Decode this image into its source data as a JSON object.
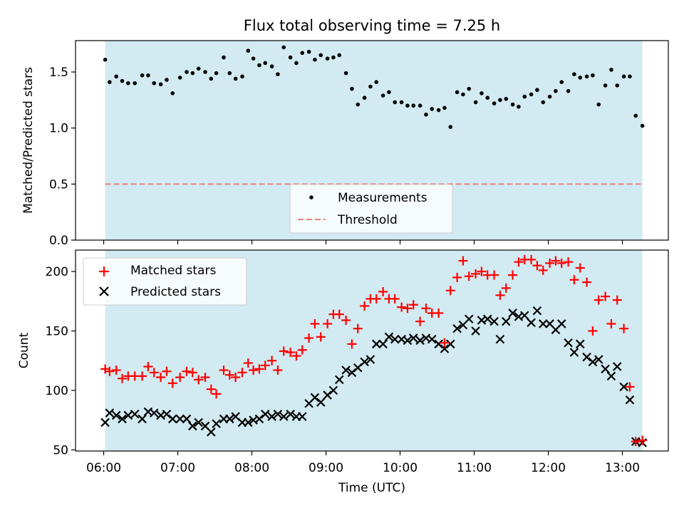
{
  "chart_data": [
    {
      "type": "scatter",
      "title": "Flux total observing time = 7.25 h",
      "xlabel": "",
      "ylabel": "Matched/Predicted stars",
      "ylim": [
        0.0,
        1.78
      ],
      "yticks": [
        0.0,
        0.5,
        1.0,
        1.5
      ],
      "ytick_labels": [
        "0.0",
        "0.5",
        "1.0",
        "1.5"
      ],
      "xlim": [
        5.62,
        13.62
      ],
      "observing_window": [
        6.02,
        13.27
      ],
      "window_color": "#d2eaf1",
      "threshold": 0.5,
      "legend_placement": "lower-center",
      "series": [
        {
          "name": "Measurements",
          "marker": "dot",
          "color": "#000000",
          "x": [
            6.02,
            6.08,
            6.17,
            6.25,
            6.33,
            6.42,
            6.52,
            6.6,
            6.68,
            6.77,
            6.85,
            6.93,
            7.03,
            7.12,
            7.2,
            7.28,
            7.37,
            7.45,
            7.52,
            7.62,
            7.7,
            7.78,
            7.87,
            7.95,
            8.02,
            8.1,
            8.18,
            8.27,
            8.35,
            8.43,
            8.52,
            8.6,
            8.68,
            8.77,
            8.85,
            8.93,
            9.02,
            9.1,
            9.18,
            9.27,
            9.35,
            9.43,
            9.52,
            9.6,
            9.68,
            9.77,
            9.85,
            9.93,
            10.02,
            10.1,
            10.18,
            10.27,
            10.35,
            10.43,
            10.52,
            10.6,
            10.68,
            10.77,
            10.85,
            10.93,
            11.02,
            11.1,
            11.18,
            11.27,
            11.35,
            11.43,
            11.52,
            11.6,
            11.68,
            11.77,
            11.85,
            11.93,
            12.02,
            12.1,
            12.18,
            12.27,
            12.35,
            12.43,
            12.52,
            12.6,
            12.68,
            12.77,
            12.85,
            12.93,
            13.02,
            13.1,
            13.18,
            13.27
          ],
          "y": [
            1.61,
            1.41,
            1.46,
            1.42,
            1.4,
            1.4,
            1.47,
            1.47,
            1.4,
            1.39,
            1.43,
            1.31,
            1.45,
            1.5,
            1.49,
            1.53,
            1.5,
            1.44,
            1.49,
            1.63,
            1.49,
            1.44,
            1.46,
            1.69,
            1.62,
            1.56,
            1.58,
            1.55,
            1.48,
            1.72,
            1.63,
            1.58,
            1.67,
            1.68,
            1.61,
            1.65,
            1.62,
            1.63,
            1.65,
            1.49,
            1.35,
            1.21,
            1.27,
            1.37,
            1.41,
            1.29,
            1.32,
            1.23,
            1.23,
            1.2,
            1.2,
            1.2,
            1.12,
            1.17,
            1.16,
            1.18,
            1.01,
            1.32,
            1.3,
            1.35,
            1.23,
            1.31,
            1.27,
            1.22,
            1.25,
            1.26,
            1.21,
            1.19,
            1.28,
            1.3,
            1.34,
            1.23,
            1.28,
            1.33,
            1.41,
            1.33,
            1.48,
            1.45,
            1.46,
            1.47,
            1.21,
            1.38,
            1.52,
            1.38,
            1.46,
            1.46,
            1.11,
            1.02
          ]
        },
        {
          "name": "Threshold",
          "marker": "dashed-line",
          "color": "#f08080"
        }
      ]
    },
    {
      "type": "scatter",
      "title": "",
      "xlabel": "Time (UTC)",
      "ylabel": "Count",
      "ylim": [
        49,
        218
      ],
      "yticks": [
        50,
        100,
        150,
        200
      ],
      "ytick_labels": [
        "50",
        "100",
        "150",
        "200"
      ],
      "xlim": [
        5.62,
        13.62
      ],
      "xticks": [
        6,
        7,
        8,
        9,
        10,
        11,
        12,
        13
      ],
      "xtick_labels": [
        "06:00",
        "07:00",
        "08:00",
        "09:00",
        "10:00",
        "11:00",
        "12:00",
        "13:00"
      ],
      "observing_window": [
        6.02,
        13.27
      ],
      "window_color": "#d2eaf1",
      "legend_placement": "upper-left",
      "series": [
        {
          "name": "Matched stars",
          "marker": "plus",
          "color": "#ff0000",
          "x": [
            6.02,
            6.08,
            6.17,
            6.25,
            6.33,
            6.42,
            6.52,
            6.6,
            6.68,
            6.77,
            6.85,
            6.93,
            7.03,
            7.12,
            7.2,
            7.28,
            7.37,
            7.45,
            7.52,
            7.62,
            7.7,
            7.78,
            7.87,
            7.95,
            8.02,
            8.1,
            8.18,
            8.27,
            8.35,
            8.43,
            8.52,
            8.6,
            8.68,
            8.77,
            8.85,
            8.93,
            9.02,
            9.1,
            9.18,
            9.27,
            9.35,
            9.43,
            9.52,
            9.6,
            9.68,
            9.77,
            9.85,
            9.93,
            10.02,
            10.1,
            10.18,
            10.27,
            10.35,
            10.43,
            10.52,
            10.6,
            10.68,
            10.77,
            10.85,
            10.93,
            11.02,
            11.1,
            11.18,
            11.27,
            11.35,
            11.43,
            11.52,
            11.6,
            11.68,
            11.77,
            11.85,
            11.93,
            12.02,
            12.1,
            12.18,
            12.27,
            12.35,
            12.43,
            12.52,
            12.6,
            12.68,
            12.77,
            12.85,
            12.93,
            13.02,
            13.1,
            13.18,
            13.27
          ],
          "y": [
            118,
            116,
            117,
            110,
            112,
            112,
            112,
            120,
            115,
            111,
            116,
            106,
            111,
            116,
            115,
            109,
            111,
            101,
            97,
            117,
            113,
            111,
            115,
            123,
            117,
            118,
            121,
            125,
            117,
            133,
            132,
            129,
            134,
            144,
            156,
            145,
            156,
            164,
            164,
            159,
            139,
            152,
            171,
            177,
            177,
            183,
            177,
            177,
            170,
            169,
            172,
            158,
            169,
            165,
            165,
            140,
            184,
            195,
            209,
            196,
            198,
            200,
            197,
            197,
            180,
            186,
            197,
            208,
            210,
            210,
            205,
            201,
            207,
            209,
            207,
            208,
            193,
            203,
            191,
            150,
            176,
            179,
            156,
            176,
            152,
            103,
            57,
            58
          ]
        },
        {
          "name": "Predicted stars",
          "marker": "x",
          "color": "#000000",
          "x": [
            6.02,
            6.08,
            6.17,
            6.25,
            6.33,
            6.42,
            6.52,
            6.6,
            6.68,
            6.77,
            6.85,
            6.93,
            7.03,
            7.12,
            7.2,
            7.28,
            7.37,
            7.45,
            7.52,
            7.62,
            7.7,
            7.78,
            7.87,
            7.95,
            8.02,
            8.1,
            8.18,
            8.27,
            8.35,
            8.43,
            8.52,
            8.6,
            8.68,
            8.77,
            8.85,
            8.93,
            9.02,
            9.1,
            9.18,
            9.27,
            9.35,
            9.43,
            9.52,
            9.6,
            9.68,
            9.77,
            9.85,
            9.93,
            10.02,
            10.1,
            10.18,
            10.27,
            10.35,
            10.43,
            10.52,
            10.6,
            10.68,
            10.77,
            10.85,
            10.93,
            11.02,
            11.1,
            11.18,
            11.27,
            11.35,
            11.43,
            11.52,
            11.6,
            11.68,
            11.77,
            11.85,
            11.93,
            12.02,
            12.1,
            12.18,
            12.27,
            12.35,
            12.43,
            12.52,
            12.6,
            12.68,
            12.77,
            12.85,
            12.93,
            13.02,
            13.1,
            13.18,
            13.27
          ],
          "y": [
            73,
            81,
            79,
            76,
            79,
            80,
            76,
            82,
            81,
            79,
            80,
            76,
            76,
            76,
            70,
            73,
            70,
            65,
            72,
            76,
            76,
            78,
            73,
            73,
            75,
            76,
            80,
            78,
            80,
            78,
            80,
            78,
            78,
            89,
            94,
            90,
            96,
            100,
            109,
            117,
            115,
            119,
            124,
            126,
            139,
            139,
            145,
            143,
            143,
            142,
            144,
            142,
            144,
            143,
            139,
            135,
            139,
            152,
            155,
            160,
            150,
            159,
            160,
            158,
            143,
            158,
            165,
            162,
            163,
            157,
            167,
            156,
            156,
            151,
            156,
            140,
            132,
            139,
            128,
            124,
            126,
            118,
            112,
            120,
            103,
            92,
            57,
            56
          ]
        }
      ]
    }
  ]
}
